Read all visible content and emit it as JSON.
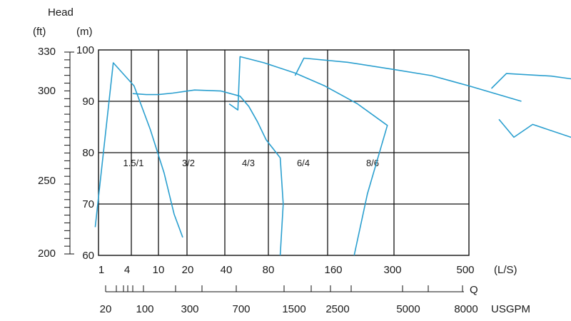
{
  "chart_data": {
    "type": "line",
    "head_label": "Head",
    "ft_unit": "(ft)",
    "m_unit": "(m)",
    "flow_unit": "(L/S)",
    "q_label": "Q",
    "gpm_unit": "USGPM",
    "y_m_ticks": [
      60,
      70,
      80,
      90,
      100
    ],
    "y_ft_ticks": [
      200,
      250,
      300,
      330
    ],
    "x_ls_ticks": [
      "1",
      "4",
      "10",
      "20",
      "40",
      "80",
      "160",
      "300",
      "500"
    ],
    "x_gpm_ticks": [
      "20",
      "100",
      "300",
      "700",
      "1500",
      "2500",
      "5000",
      "8000"
    ],
    "zone_labels": [
      "1.5/1",
      "3/2",
      "4/3",
      "6/4",
      "8/6"
    ],
    "series": [
      {
        "name": "1.5/1",
        "points": [
          [
            -0.1,
            65.5
          ],
          [
            0.45,
            97.5
          ],
          [
            1.1,
            93
          ],
          [
            1.7,
            84.5
          ],
          [
            2.2,
            76
          ],
          [
            2.55,
            68
          ],
          [
            2.85,
            63.5
          ]
        ]
      },
      {
        "name": "1.5/1",
        "points": [
          [
            1.05,
            91.5
          ],
          [
            1.55,
            91.3
          ],
          [
            2.0,
            91.3
          ],
          [
            2.5,
            91.6
          ],
          [
            3.2,
            92.2
          ],
          [
            3.9,
            92
          ],
          [
            4.35,
            91
          ],
          [
            4.55,
            89
          ],
          [
            4.75,
            86
          ],
          [
            4.95,
            82.5
          ],
          [
            5.2,
            79
          ],
          [
            5.25,
            70
          ],
          [
            5.2,
            60
          ]
        ]
      },
      {
        "name": "3/2",
        "points": [
          [
            4.1,
            89.5
          ],
          [
            4.3,
            88.3
          ],
          [
            4.35,
            98.7
          ],
          [
            4.9,
            97.5
          ],
          [
            5.45,
            95.5
          ],
          [
            5.95,
            93
          ],
          [
            6.45,
            89.5
          ],
          [
            6.9,
            85.3
          ],
          [
            6.6,
            72
          ],
          [
            6.4,
            60
          ]
        ]
      },
      {
        "name": "4/3",
        "points": [
          [
            5.45,
            95
          ],
          [
            5.6,
            98.4
          ],
          [
            6.3,
            97.6
          ],
          [
            7.0,
            96.2
          ],
          [
            7.5,
            95
          ],
          [
            8.0,
            93
          ],
          [
            8.7,
            90
          ]
        ]
      },
      {
        "name": "6/4",
        "points": [
          [
            8.3,
            92.5
          ],
          [
            8.5,
            95.4
          ],
          [
            9.1,
            94.9
          ],
          [
            9.7,
            93.7
          ],
          [
            10.25,
            92
          ],
          [
            10.9,
            89.5
          ],
          [
            11.5,
            86.5
          ],
          [
            11.85,
            83.5
          ],
          [
            11.55,
            75
          ],
          [
            11.4,
            68.5
          ]
        ]
      },
      {
        "name": "8/6",
        "points": [
          [
            8.4,
            86.5
          ],
          [
            8.6,
            83
          ],
          [
            8.85,
            85.5
          ],
          [
            9.4,
            82.8
          ],
          [
            10.05,
            79
          ],
          [
            10.3,
            76.5
          ],
          [
            10.6,
            73
          ],
          [
            11.2,
            67.5
          ]
        ]
      }
    ]
  }
}
